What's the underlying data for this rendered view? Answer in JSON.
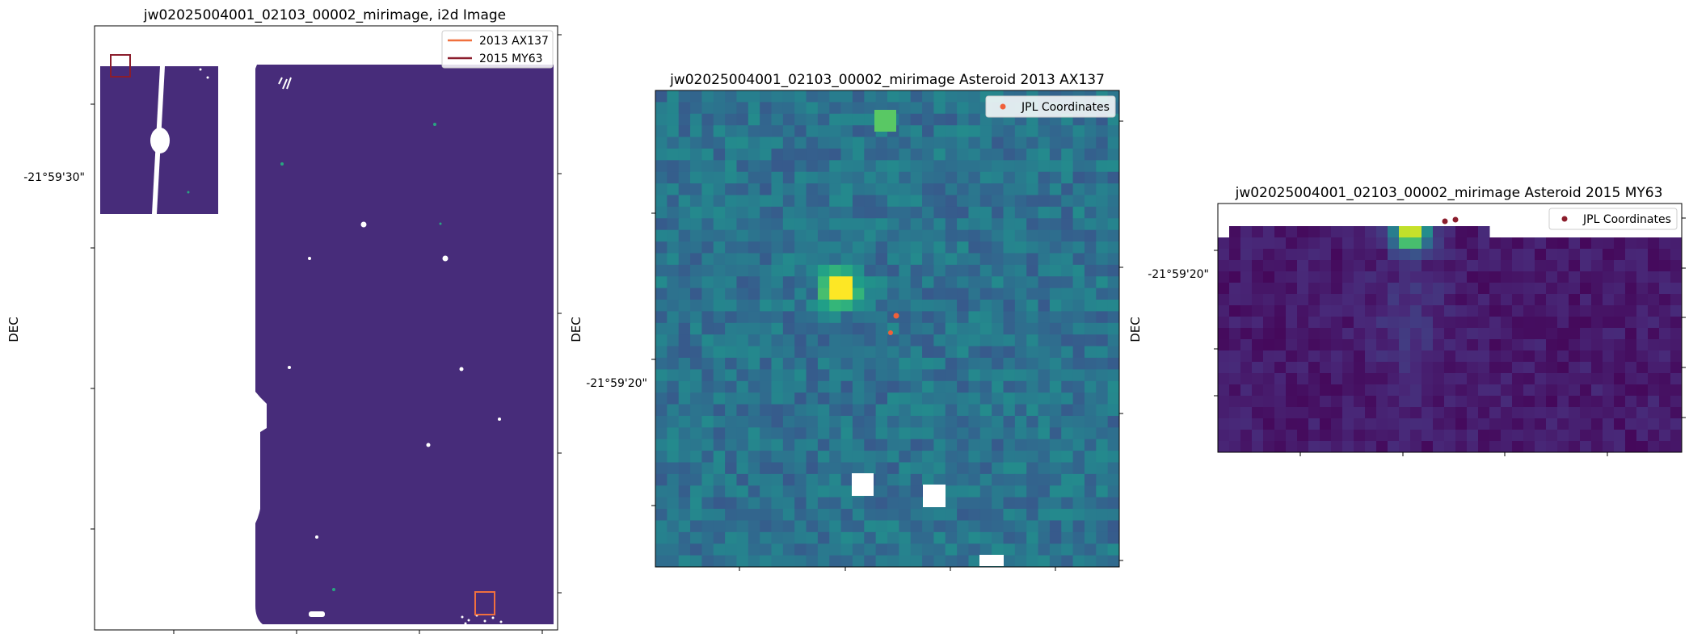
{
  "charts": {
    "c1": {
      "title": "jw02025004001_02103_00002_mirimage,  i2d Image",
      "ylabel": "DEC",
      "ytick": "-21°59'30\"",
      "legend": [
        {
          "label": "2013 AX137",
          "color": "#f0703e"
        },
        {
          "label": "2015 MY63",
          "color": "#8b1d2c"
        }
      ]
    },
    "c2": {
      "title": "jw02025004001_02103_00002_mirimage Asteroid 2013 AX137",
      "ylabel": "DEC",
      "ytick": "-21°59'20\"",
      "legend": [
        {
          "label": "JPL Coordinates",
          "color": "#f0603a"
        }
      ]
    },
    "c3": {
      "title": "jw02025004001_02103_00002_mirimage Asteroid 2015 MY63",
      "ylabel": "DEC",
      "ytick": "-21°59'20\"",
      "legend": [
        {
          "label": "JPL Coordinates",
          "color": "#8b1d2c"
        }
      ]
    }
  },
  "chart_data": [
    {
      "type": "heatmap",
      "title": "jw02025004001_02103_00002_mirimage,  i2d Image",
      "ylabel": "DEC",
      "yticks": [
        "-21°59'30\""
      ],
      "series": [
        {
          "name": "2013 AX137",
          "color": "#f0703e"
        },
        {
          "name": "2015 MY63",
          "color": "#8b1d2c"
        }
      ],
      "legend": "upper right",
      "colormap": "viridis"
    },
    {
      "type": "heatmap",
      "title": "jw02025004001_02103_00002_mirimage Asteroid 2013 AX137",
      "ylabel": "DEC",
      "yticks": [
        "-21°59'20\""
      ],
      "series": [
        {
          "name": "JPL Coordinates",
          "color": "#f0603a"
        }
      ],
      "legend": "upper right",
      "colormap": "viridis"
    },
    {
      "type": "heatmap",
      "title": "jw02025004001_02103_00002_mirimage Asteroid 2015 MY63",
      "ylabel": "DEC",
      "yticks": [
        "-21°59'20\""
      ],
      "series": [
        {
          "name": "JPL Coordinates",
          "color": "#8b1d2c"
        }
      ],
      "legend": "upper right",
      "colormap": "viridis"
    }
  ]
}
